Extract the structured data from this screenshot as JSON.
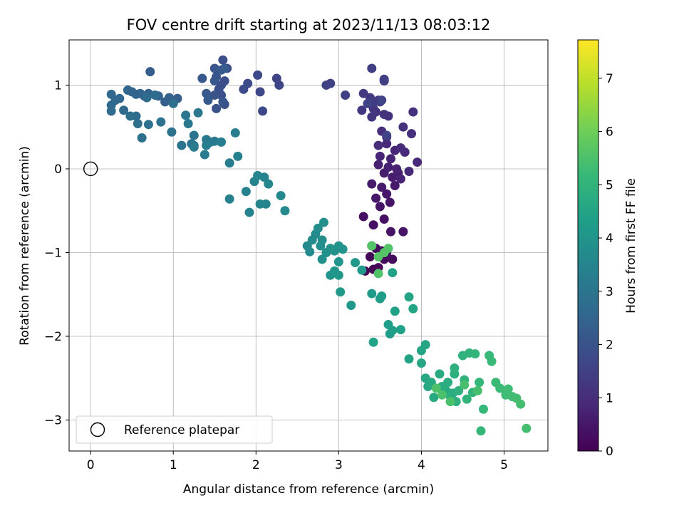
{
  "chart_data": {
    "type": "scatter",
    "title": "FOV centre drift starting at 2023/11/13 08:03:12",
    "xlabel": "Angular distance from reference (arcmin)",
    "ylabel": "Rotation from reference (arcmin)",
    "xlim": [
      -0.26,
      5.53
    ],
    "ylim": [
      -3.37,
      1.54
    ],
    "x_ticks": [
      0,
      1,
      2,
      3,
      4,
      5
    ],
    "y_ticks": [
      -3,
      -2,
      -1,
      0,
      1
    ],
    "x_tick_labels": [
      "0",
      "1",
      "2",
      "3",
      "4",
      "5"
    ],
    "y_tick_labels": [
      "−3",
      "−2",
      "−1",
      "0",
      "1"
    ],
    "grid": true,
    "legend": {
      "position": "lower-left",
      "entries": [
        "Reference platepar"
      ]
    },
    "reference_point": {
      "x": 0,
      "y": 0,
      "label": "Reference platepar"
    },
    "colorbar": {
      "label": "Hours from first FF file",
      "min": 0,
      "max": 7.72,
      "ticks": [
        0,
        1,
        2,
        3,
        4,
        5,
        6,
        7
      ],
      "tick_labels": [
        "0",
        "1",
        "2",
        "3",
        "4",
        "5",
        "6",
        "7"
      ],
      "colormap": "viridis"
    },
    "points_columns": [
      "x",
      "y",
      "hours"
    ],
    "points": [
      [
        3.32,
        -1.22,
        0.05
      ],
      [
        3.42,
        -1.2,
        0.08
      ],
      [
        3.38,
        -1.05,
        0.1
      ],
      [
        3.48,
        -1.18,
        0.12
      ],
      [
        3.55,
        -1.08,
        0.15
      ],
      [
        3.4,
        -0.92,
        0.18
      ],
      [
        3.52,
        -0.98,
        0.2
      ],
      [
        3.65,
        -1.08,
        0.22
      ],
      [
        3.45,
        -0.95,
        0.25
      ],
      [
        3.58,
        -1.0,
        0.27
      ],
      [
        3.3,
        -0.57,
        0.3
      ],
      [
        3.42,
        -0.67,
        0.32
      ],
      [
        3.55,
        -0.6,
        0.35
      ],
      [
        3.63,
        -0.75,
        0.37
      ],
      [
        3.78,
        -0.75,
        0.4
      ],
      [
        3.5,
        -0.45,
        0.42
      ],
      [
        3.62,
        -0.4,
        0.45
      ],
      [
        3.58,
        -0.3,
        0.48
      ],
      [
        3.45,
        -0.35,
        0.5
      ],
      [
        3.68,
        -0.2,
        0.52
      ],
      [
        3.4,
        -0.18,
        0.55
      ],
      [
        3.52,
        -0.22,
        0.58
      ],
      [
        3.65,
        -0.1,
        0.6
      ],
      [
        3.55,
        -0.05,
        0.63
      ],
      [
        3.72,
        -0.05,
        0.65
      ],
      [
        3.48,
        0.05,
        0.68
      ],
      [
        3.6,
        0.02,
        0.7
      ],
      [
        3.7,
        0.0,
        0.72
      ],
      [
        3.63,
        0.12,
        0.75
      ],
      [
        3.75,
        -0.12,
        0.78
      ],
      [
        3.5,
        0.15,
        0.8
      ],
      [
        3.68,
        0.22,
        0.82
      ],
      [
        3.58,
        0.3,
        0.85
      ],
      [
        3.85,
        -0.03,
        0.88
      ],
      [
        3.95,
        0.08,
        0.9
      ],
      [
        3.8,
        0.2,
        0.92
      ],
      [
        3.75,
        0.25,
        0.95
      ],
      [
        3.48,
        0.28,
        0.98
      ],
      [
        3.58,
        0.38,
        1.0
      ],
      [
        3.52,
        0.45,
        1.02
      ],
      [
        3.88,
        0.42,
        1.05
      ],
      [
        3.78,
        0.5,
        1.08
      ],
      [
        3.9,
        0.68,
        1.1
      ],
      [
        3.6,
        0.63,
        1.12
      ],
      [
        3.45,
        0.68,
        1.15
      ],
      [
        3.55,
        0.65,
        1.18
      ],
      [
        3.42,
        0.72,
        1.2
      ],
      [
        3.4,
        0.62,
        1.22
      ],
      [
        3.28,
        0.7,
        1.25
      ],
      [
        3.48,
        0.82,
        1.28
      ],
      [
        3.38,
        0.85,
        1.3
      ],
      [
        3.5,
        0.8,
        1.32
      ],
      [
        3.3,
        0.9,
        1.35
      ],
      [
        3.42,
        0.8,
        1.38
      ],
      [
        3.55,
        1.07,
        1.4
      ],
      [
        3.55,
        1.05,
        1.42
      ],
      [
        3.4,
        1.2,
        1.45
      ],
      [
        3.08,
        0.88,
        1.48
      ],
      [
        2.9,
        1.02,
        1.5
      ],
      [
        2.85,
        1.0,
        1.52
      ],
      [
        3.35,
        0.78,
        1.55
      ],
      [
        3.58,
        0.4,
        1.58
      ],
      [
        3.52,
        0.82,
        1.6
      ],
      [
        2.25,
        1.08,
        1.62
      ],
      [
        2.28,
        1.0,
        1.65
      ],
      [
        2.08,
        0.69,
        1.68
      ],
      [
        2.05,
        0.92,
        1.7
      ],
      [
        2.02,
        1.12,
        1.72
      ],
      [
        1.9,
        1.02,
        1.75
      ],
      [
        1.85,
        0.95,
        1.78
      ],
      [
        1.65,
        1.2,
        1.8
      ],
      [
        1.6,
        1.3,
        1.82
      ],
      [
        1.62,
        1.05,
        1.85
      ],
      [
        1.58,
        1.0,
        1.88
      ],
      [
        1.55,
        0.95,
        1.9
      ],
      [
        1.58,
        0.88,
        1.92
      ],
      [
        1.62,
        0.77,
        1.95
      ],
      [
        1.5,
        0.88,
        1.98
      ],
      [
        1.52,
        0.72,
        2.0
      ],
      [
        1.6,
        0.8,
        2.02
      ],
      [
        1.5,
        1.2,
        2.05
      ],
      [
        1.52,
        1.1,
        2.08
      ],
      [
        1.5,
        1.05,
        2.1
      ],
      [
        1.35,
        1.08,
        2.12
      ],
      [
        1.4,
        0.9,
        2.15
      ],
      [
        1.42,
        0.82,
        2.18
      ],
      [
        1.58,
        1.18,
        2.2
      ],
      [
        1.62,
        1.2,
        2.22
      ],
      [
        1.0,
        0.8,
        2.25
      ],
      [
        0.72,
        1.16,
        2.28
      ],
      [
        1.05,
        0.84,
        2.3
      ],
      [
        0.9,
        0.8,
        2.32
      ],
      [
        0.95,
        0.85,
        2.35
      ],
      [
        0.82,
        0.87,
        2.38
      ],
      [
        0.7,
        0.9,
        2.4
      ],
      [
        0.65,
        0.87,
        2.42
      ],
      [
        0.6,
        0.9,
        2.45
      ],
      [
        0.55,
        0.89,
        2.48
      ],
      [
        0.5,
        0.92,
        2.5
      ],
      [
        0.45,
        0.94,
        2.52
      ],
      [
        0.35,
        0.84,
        2.55
      ],
      [
        0.3,
        0.82,
        2.58
      ],
      [
        0.25,
        0.89,
        2.6
      ],
      [
        0.25,
        0.76,
        2.62
      ],
      [
        0.25,
        0.69,
        2.65
      ],
      [
        0.4,
        0.7,
        2.68
      ],
      [
        0.55,
        0.63,
        2.7
      ],
      [
        0.68,
        0.85,
        2.72
      ],
      [
        0.78,
        0.88,
        2.75
      ],
      [
        1.0,
        0.78,
        2.78
      ],
      [
        0.48,
        0.63,
        2.8
      ],
      [
        0.57,
        0.54,
        2.82
      ],
      [
        0.62,
        0.37,
        2.85
      ],
      [
        0.7,
        0.53,
        2.88
      ],
      [
        0.85,
        0.56,
        2.9
      ],
      [
        0.98,
        0.44,
        2.92
      ],
      [
        1.1,
        0.28,
        2.95
      ],
      [
        1.22,
        0.3,
        2.98
      ],
      [
        1.25,
        0.28,
        3.0
      ],
      [
        1.15,
        0.64,
        3.02
      ],
      [
        1.25,
        0.4,
        3.05
      ],
      [
        1.3,
        0.67,
        3.08
      ],
      [
        1.18,
        0.54,
        3.1
      ],
      [
        1.4,
        0.35,
        3.12
      ],
      [
        1.45,
        0.32,
        3.15
      ],
      [
        1.5,
        0.33,
        3.18
      ],
      [
        1.38,
        0.17,
        3.2
      ],
      [
        1.25,
        0.26,
        3.22
      ],
      [
        1.4,
        0.28,
        3.25
      ],
      [
        1.58,
        0.32,
        3.28
      ],
      [
        1.68,
        0.07,
        3.3
      ],
      [
        1.75,
        0.43,
        3.32
      ],
      [
        1.78,
        0.15,
        3.35
      ],
      [
        1.68,
        -0.36,
        3.38
      ],
      [
        1.88,
        -0.27,
        3.4
      ],
      [
        1.92,
        -0.52,
        3.42
      ],
      [
        1.98,
        -0.15,
        3.45
      ],
      [
        2.02,
        -0.08,
        3.48
      ],
      [
        2.1,
        -0.1,
        3.5
      ],
      [
        2.12,
        -0.42,
        3.52
      ],
      [
        2.15,
        -0.18,
        3.55
      ],
      [
        2.05,
        -0.42,
        3.58
      ],
      [
        2.3,
        -0.32,
        3.6
      ],
      [
        2.35,
        -0.5,
        3.62
      ],
      [
        2.62,
        -0.92,
        3.65
      ],
      [
        2.65,
        -0.99,
        3.68
      ],
      [
        2.68,
        -0.85,
        3.7
      ],
      [
        2.72,
        -0.78,
        3.72
      ],
      [
        2.75,
        -0.71,
        3.75
      ],
      [
        2.8,
        -0.85,
        3.78
      ],
      [
        2.82,
        -0.64,
        3.8
      ],
      [
        2.78,
        -0.92,
        3.82
      ],
      [
        2.8,
        -1.08,
        3.85
      ],
      [
        2.85,
        -1.0,
        3.88
      ],
      [
        2.9,
        -0.95,
        3.9
      ],
      [
        2.95,
        -0.98,
        3.92
      ],
      [
        3.0,
        -0.92,
        3.95
      ],
      [
        3.05,
        -0.96,
        3.98
      ],
      [
        3.0,
        -1.11,
        4.0
      ],
      [
        2.9,
        -1.27,
        4.02
      ],
      [
        2.95,
        -1.22,
        4.05
      ],
      [
        3.0,
        -1.27,
        4.08
      ],
      [
        3.02,
        -1.47,
        4.1
      ],
      [
        3.15,
        -1.63,
        4.12
      ],
      [
        3.2,
        -1.12,
        4.15
      ],
      [
        3.28,
        -1.21,
        4.18
      ],
      [
        3.4,
        -1.49,
        4.2
      ],
      [
        3.5,
        -1.55,
        4.22
      ],
      [
        3.52,
        -1.52,
        4.25
      ],
      [
        3.6,
        -1.86,
        4.28
      ],
      [
        3.62,
        -1.97,
        4.3
      ],
      [
        3.65,
        -1.93,
        4.32
      ],
      [
        3.68,
        -1.7,
        4.35
      ],
      [
        3.75,
        -1.92,
        4.38
      ],
      [
        3.65,
        -1.24,
        4.4
      ],
      [
        3.42,
        -2.07,
        4.42
      ],
      [
        3.85,
        -2.27,
        4.45
      ],
      [
        3.85,
        -1.53,
        4.48
      ],
      [
        3.9,
        -1.67,
        4.5
      ],
      [
        4.0,
        -2.17,
        4.52
      ],
      [
        4.05,
        -2.1,
        4.55
      ],
      [
        4.0,
        -2.32,
        4.58
      ],
      [
        4.05,
        -2.5,
        4.6
      ],
      [
        4.08,
        -2.6,
        4.62
      ],
      [
        4.12,
        -2.55,
        4.65
      ],
      [
        4.15,
        -2.73,
        4.68
      ],
      [
        4.22,
        -2.45,
        4.7
      ],
      [
        4.25,
        -2.6,
        4.72
      ],
      [
        4.3,
        -2.65,
        4.75
      ],
      [
        4.32,
        -2.55,
        4.78
      ],
      [
        4.35,
        -2.72,
        4.8
      ],
      [
        4.38,
        -2.68,
        4.82
      ],
      [
        4.4,
        -2.45,
        4.85
      ],
      [
        4.42,
        -2.78,
        4.88
      ],
      [
        4.45,
        -2.65,
        4.9
      ],
      [
        4.4,
        -2.38,
        4.92
      ],
      [
        4.5,
        -2.23,
        4.95
      ],
      [
        4.52,
        -2.52,
        4.98
      ],
      [
        4.55,
        -2.75,
        5.0
      ],
      [
        4.58,
        -2.2,
        5.02
      ],
      [
        4.62,
        -2.67,
        5.05
      ],
      [
        4.65,
        -2.21,
        5.08
      ],
      [
        4.7,
        -2.55,
        5.1
      ],
      [
        4.72,
        -3.13,
        5.12
      ],
      [
        4.75,
        -2.87,
        5.15
      ],
      [
        4.82,
        -2.23,
        5.18
      ],
      [
        4.85,
        -2.3,
        5.2
      ],
      [
        4.9,
        -2.55,
        5.22
      ],
      [
        4.95,
        -2.62,
        5.25
      ],
      [
        5.02,
        -2.7,
        5.28
      ],
      [
        5.05,
        -2.63,
        5.3
      ],
      [
        5.1,
        -2.72,
        5.32
      ],
      [
        5.15,
        -2.74,
        5.35
      ],
      [
        5.2,
        -2.81,
        5.38
      ],
      [
        5.27,
        -3.1,
        5.4
      ],
      [
        4.68,
        -2.65,
        5.42
      ],
      [
        4.52,
        -2.58,
        5.45
      ],
      [
        4.35,
        -2.78,
        5.48
      ],
      [
        4.25,
        -2.7,
        5.5
      ],
      [
        4.18,
        -2.62,
        5.52
      ],
      [
        3.48,
        -1.25,
        5.55
      ],
      [
        3.6,
        -0.95,
        5.58
      ],
      [
        3.4,
        -0.92,
        5.6
      ],
      [
        3.55,
        -1.0,
        5.62
      ],
      [
        3.48,
        -1.05,
        5.65
      ]
    ]
  }
}
